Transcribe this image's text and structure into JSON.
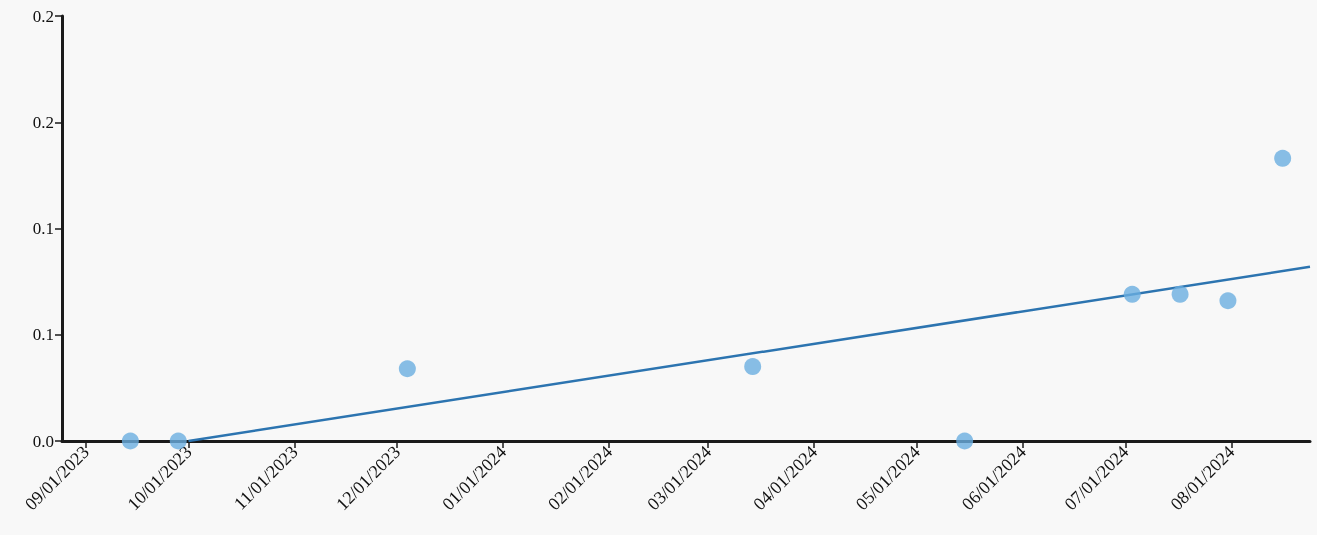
{
  "chart_data": {
    "type": "scatter",
    "xlim": [
      "2023-08-25",
      "2024-08-24"
    ],
    "ylim": [
      0,
      0.2
    ],
    "xticks": [
      {
        "value": "2023-09-01",
        "label": "09/01/2023"
      },
      {
        "value": "2023-10-01",
        "label": "10/01/2023"
      },
      {
        "value": "2023-11-01",
        "label": "11/01/2023"
      },
      {
        "value": "2023-12-01",
        "label": "12/01/2023"
      },
      {
        "value": "2024-01-01",
        "label": "01/01/2024"
      },
      {
        "value": "2024-02-01",
        "label": "02/01/2024"
      },
      {
        "value": "2024-03-01",
        "label": "03/01/2024"
      },
      {
        "value": "2024-04-01",
        "label": "04/01/2024"
      },
      {
        "value": "2024-05-01",
        "label": "05/01/2024"
      },
      {
        "value": "2024-06-01",
        "label": "06/01/2024"
      },
      {
        "value": "2024-07-01",
        "label": "07/01/2024"
      },
      {
        "value": "2024-08-01",
        "label": "08/01/2024"
      }
    ],
    "yticks": [
      {
        "value": 0,
        "label": "0.0"
      },
      {
        "value": 0.05,
        "label": "0.1"
      },
      0.1,
      {
        "value": 0.15,
        "label": "0.2"
      },
      0.2
    ],
    "grid": false,
    "series": [
      {
        "color": "#6aaee0",
        "marker": "circle",
        "x": [
          "2023-09-14",
          "2023-09-28",
          "2023-12-04",
          "2024-03-14",
          "2024-05-15",
          "2024-07-03",
          "2024-07-17",
          "2024-07-31",
          "2024-08-16"
        ],
        "values": [
          0,
          0,
          0.034,
          0.035,
          0,
          0.069,
          0.069,
          0.066,
          0.133
        ]
      },
      {
        "type": "line",
        "color": "#2c74b0",
        "marker": "none",
        "line_style": "solid",
        "x": [
          "2023-10-01",
          "2024-08-24"
        ],
        "values": [
          0,
          0.082
        ]
      }
    ]
  }
}
